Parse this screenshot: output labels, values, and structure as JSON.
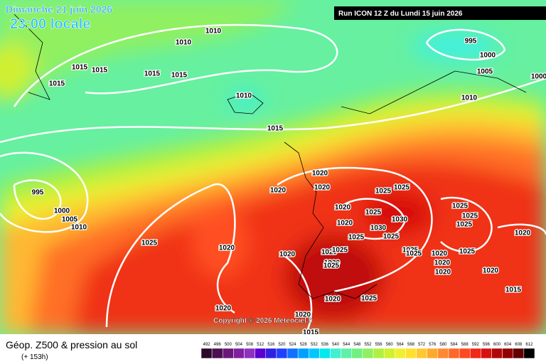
{
  "header": {
    "title": "Dimanche 21 juin 2026",
    "time": "23:00 locale",
    "run": "Run ICON 12 Z du Lundi 15 juin 2026"
  },
  "footer": {
    "title": "Géop. Z500 & pression au sol",
    "lead": "(+ 153h)"
  },
  "copyright": "Copyright © 2026 Meteociel.fr",
  "isobar_labels": [
    1010,
    1010,
    995,
    1000,
    1005,
    1000,
    1015,
    1015,
    1015,
    1015,
    1015,
    1010,
    1010,
    1015,
    995,
    1000,
    1005,
    1010,
    1020,
    1020,
    1020,
    1025,
    1025,
    1020,
    1025,
    1030,
    1020,
    1030,
    1025,
    1025,
    1025,
    1025,
    1025,
    1025,
    1020,
    1020,
    1020,
    1025,
    1025,
    1025,
    1020,
    1025,
    1020,
    1020,
    1025,
    1020,
    1020,
    1020,
    1020,
    1025,
    1015,
    1020,
    1020,
    1015
  ],
  "color_scale": {
    "values": [
      492,
      496,
      500,
      504,
      508,
      512,
      516,
      520,
      524,
      528,
      532,
      536,
      540,
      544,
      548,
      552,
      556,
      560,
      564,
      568,
      572,
      576,
      580,
      584,
      588,
      592,
      596,
      600,
      604,
      608,
      612
    ],
    "colors": [
      "#2a0a2a",
      "#4a1050",
      "#6a1878",
      "#8020a0",
      "#9030c0",
      "#5a00d0",
      "#3020e0",
      "#2040ff",
      "#1070ff",
      "#00a0ff",
      "#00c8ff",
      "#00e8f0",
      "#40f0d0",
      "#60f0a8",
      "#70f080",
      "#90f060",
      "#b0f040",
      "#d0f030",
      "#f0f030",
      "#ffe030",
      "#ffc830",
      "#ffa830",
      "#ff8830",
      "#ff6828",
      "#ff4820",
      "#f02818",
      "#d81010",
      "#b00808",
      "#900000",
      "#600000",
      "#000000"
    ]
  }
}
